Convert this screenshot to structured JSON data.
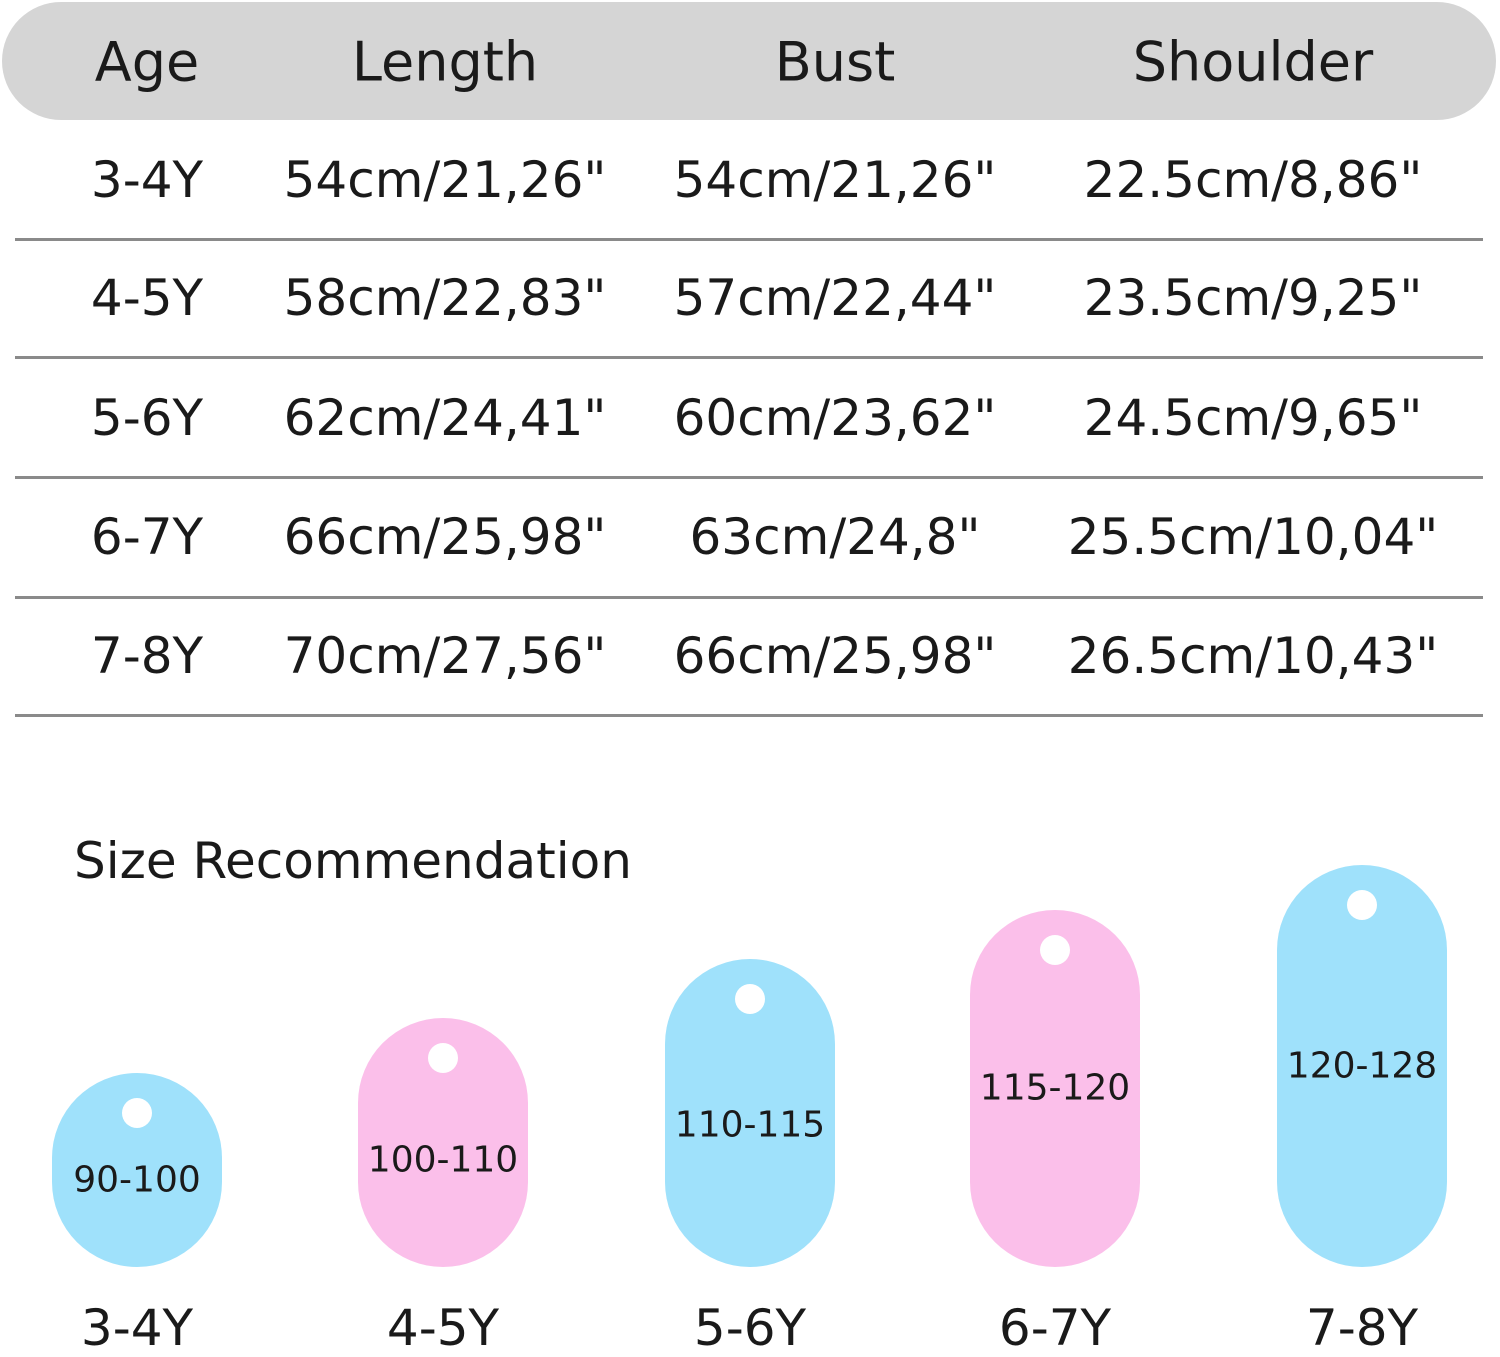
{
  "table": {
    "headers": [
      "Age",
      "Length",
      "Bust",
      "Shoulder"
    ],
    "rows": [
      [
        "3-4Y",
        "54cm/21,26\"",
        "54cm/21,26\"",
        "22.5cm/8,86\""
      ],
      [
        "4-5Y",
        "58cm/22,83\"",
        "57cm/22,44\"",
        "23.5cm/9,25\""
      ],
      [
        "5-6Y",
        "62cm/24,41\"",
        "60cm/23,62\"",
        "24.5cm/9,65\""
      ],
      [
        "6-7Y",
        "66cm/25,98\"",
        "63cm/24,8\"",
        "25.5cm/10,04\""
      ],
      [
        "7-8Y",
        "70cm/27,56\"",
        "66cm/25,98\"",
        "26.5cm/10,43\""
      ]
    ]
  },
  "recommendation": {
    "title": "Size Recommendation",
    "tags": [
      {
        "range": "90-100",
        "age": "3-4Y",
        "color": "#9fe1fb"
      },
      {
        "range": "100-110",
        "age": "4-5Y",
        "color": "#fbbfea"
      },
      {
        "range": "110-115",
        "age": "5-6Y",
        "color": "#9fe1fb"
      },
      {
        "range": "115-120",
        "age": "6-7Y",
        "color": "#fbbfea"
      },
      {
        "range": "120-128",
        "age": "7-8Y",
        "color": "#9fe1fb"
      }
    ]
  },
  "colors": {
    "header_bg": "#d5d5d5",
    "divider": "#8a8a8a",
    "blue": "#9fe1fb",
    "pink": "#fbbfea"
  }
}
